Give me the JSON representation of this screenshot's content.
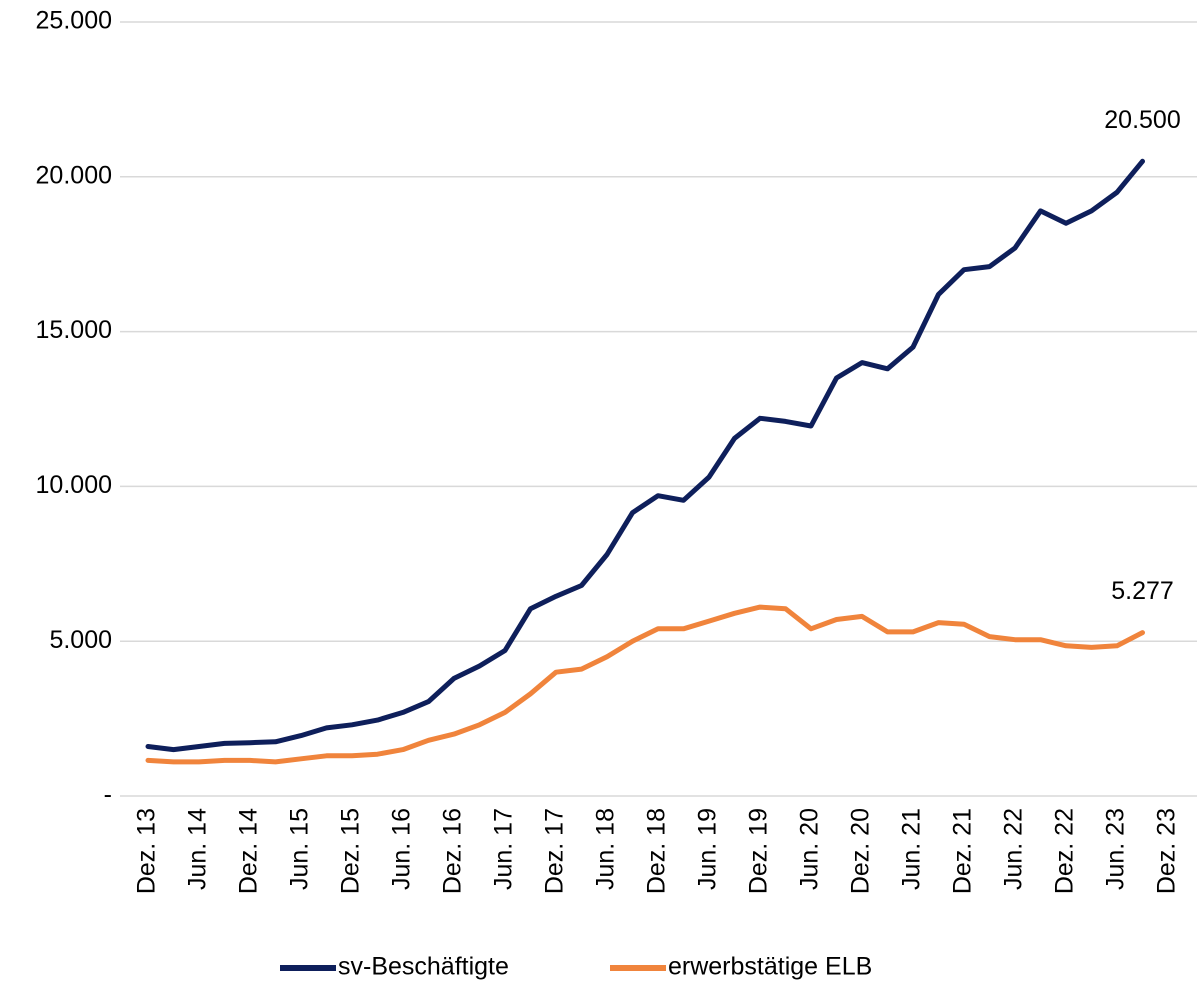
{
  "chart_data": {
    "type": "line",
    "categories": [
      "Dez. 13",
      null,
      "Jun. 14",
      null,
      "Dez. 14",
      null,
      "Jun. 15",
      null,
      "Dez. 15",
      null,
      "Jun. 16",
      null,
      "Dez. 16",
      null,
      "Jun. 17",
      null,
      "Dez. 17",
      null,
      "Jun. 18",
      null,
      "Dez. 18",
      null,
      "Jun. 19",
      null,
      "Dez. 19",
      null,
      "Jun. 20",
      null,
      "Dez. 20",
      null,
      "Jun. 21",
      null,
      "Dez. 21",
      null,
      "Jun. 22",
      null,
      "Dez. 22",
      null,
      "Jun. 23",
      null,
      "Dez. 23"
    ],
    "series": [
      {
        "name": "sv-Beschäftigte",
        "color": "#0e1f5b",
        "values": [
          1600,
          1500,
          1600,
          1700,
          1720,
          1750,
          1950,
          2200,
          2300,
          2450,
          2700,
          3050,
          3800,
          4200,
          4700,
          6050,
          6450,
          6800,
          7800,
          9150,
          9700,
          9550,
          10300,
          11550,
          12200,
          12100,
          11950,
          13500,
          14000,
          13800,
          14500,
          16200,
          17000,
          17100,
          17700,
          18900,
          18500,
          18900,
          19500,
          20500,
          null
        ],
        "value_labels": [
          null,
          null,
          null,
          null,
          null,
          null,
          null,
          null,
          null,
          null,
          null,
          null,
          null,
          null,
          null,
          null,
          null,
          null,
          null,
          null,
          null,
          null,
          null,
          null,
          null,
          null,
          null,
          null,
          null,
          null,
          null,
          null,
          null,
          null,
          null,
          null,
          null,
          null,
          null,
          "20.500",
          null
        ]
      },
      {
        "name": "erwerbstätige ELB",
        "color": "#f0843c",
        "values": [
          1150,
          1100,
          1100,
          1150,
          1150,
          1100,
          1200,
          1300,
          1300,
          1350,
          1500,
          1800,
          2000,
          2300,
          2700,
          3300,
          4000,
          4100,
          4500,
          5000,
          5400,
          5400,
          5650,
          5900,
          6100,
          6050,
          5400,
          5700,
          5800,
          5300,
          5300,
          5600,
          5550,
          5150,
          5050,
          5050,
          4850,
          4800,
          4850,
          5277,
          null
        ],
        "value_labels": [
          null,
          null,
          null,
          null,
          null,
          null,
          null,
          null,
          null,
          null,
          null,
          null,
          null,
          null,
          null,
          null,
          null,
          null,
          null,
          null,
          null,
          null,
          null,
          null,
          null,
          null,
          null,
          null,
          null,
          null,
          null,
          null,
          null,
          null,
          null,
          null,
          null,
          null,
          null,
          "5.277",
          null
        ]
      }
    ],
    "ylim": [
      0,
      25000
    ],
    "yticks": [
      {
        "value": 0,
        "label": "-"
      },
      {
        "value": 5000,
        "label": "5.000"
      },
      {
        "value": 10000,
        "label": "10.000"
      },
      {
        "value": 15000,
        "label": "15.000"
      },
      {
        "value": 20000,
        "label": "20.000"
      },
      {
        "value": 25000,
        "label": "25.000"
      }
    ],
    "grid": true,
    "legend": "bottom"
  }
}
